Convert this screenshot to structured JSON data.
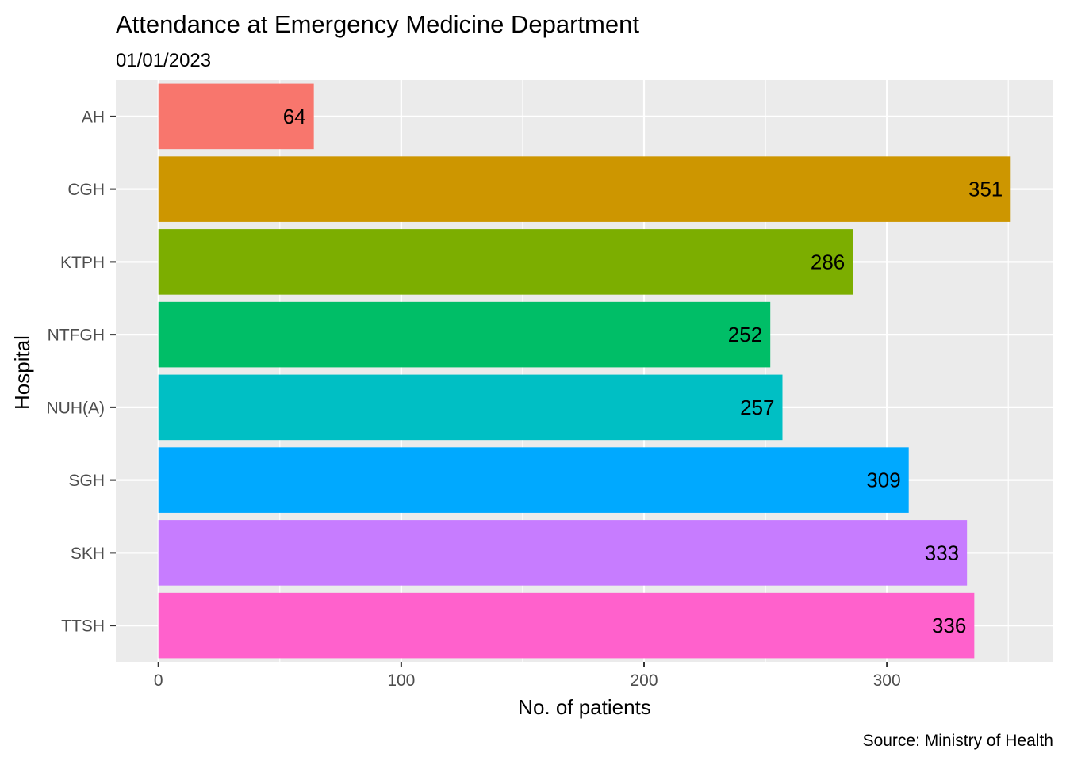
{
  "chart_data": {
    "type": "bar",
    "orientation": "horizontal",
    "title": "Attendance at Emergency Medicine Department",
    "subtitle": "01/01/2023",
    "xlabel": "No. of patients",
    "ylabel": "Hospital",
    "caption": "Source: Ministry of Health",
    "categories": [
      "AH",
      "CGH",
      "KTPH",
      "NTFGH",
      "NUH(A)",
      "SGH",
      "SKH",
      "TTSH"
    ],
    "values": [
      64,
      351,
      286,
      252,
      257,
      309,
      333,
      336
    ],
    "colors": [
      "#F8766D",
      "#CD9600",
      "#7CAE00",
      "#00BE67",
      "#00BFC4",
      "#00A9FF",
      "#C77CFF",
      "#FF61CC"
    ],
    "xlim": [
      -17.55,
      368.55
    ],
    "xticks": [
      0,
      100,
      200,
      300
    ],
    "grid": true,
    "legend": "none",
    "panel_background": "#EBEBEB",
    "grid_color": "#FFFFFF"
  }
}
